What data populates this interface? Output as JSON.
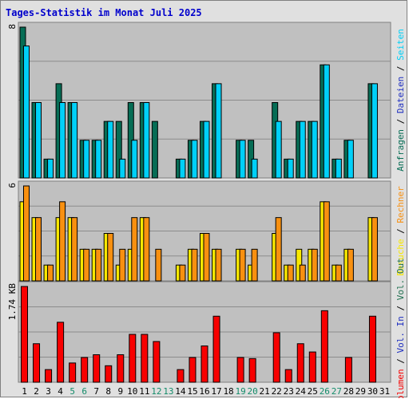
{
  "title": "Tages-Statistik im Monat Juli 2025",
  "colors": {
    "background": "#e0e0e0",
    "plot_bg": "#c0c0c0",
    "anfragen": "#066d55",
    "dateien": "#1e2ec0",
    "seiten": "#00d0f8",
    "besuche": "#f8e800",
    "rechner": "#f89010",
    "vol_out": "#207050",
    "vol_in": "#1e2ec0",
    "volumen": "#f80000",
    "weekend_label": "#138c6a",
    "weekday_label": "#000000"
  },
  "chart_data": [
    {
      "type": "bar",
      "panel": "hits",
      "ymax_label": "8",
      "legend": [
        {
          "text": "Anfragen",
          "color_key": "anfragen"
        },
        {
          "text": " / ",
          "color_key": "weekday_label"
        },
        {
          "text": "Dateien",
          "color_key": "dateien"
        },
        {
          "text": " / ",
          "color_key": "weekday_label"
        },
        {
          "text": "Seiten",
          "color_key": "seiten"
        }
      ],
      "categories": [
        "1",
        "2",
        "3",
        "4",
        "5",
        "6",
        "7",
        "8",
        "9",
        "10",
        "11",
        "12",
        "13",
        "14",
        "15",
        "16",
        "17",
        "18",
        "19",
        "20",
        "21",
        "22",
        "23",
        "24",
        "25",
        "26",
        "27",
        "28",
        "29",
        "30",
        "31"
      ],
      "ylim": [
        0,
        8
      ],
      "series": [
        {
          "name": "Anfragen",
          "color_key": "anfragen",
          "values": [
            8,
            4,
            1,
            5,
            4,
            2,
            2,
            3,
            3,
            4,
            4,
            3,
            0,
            1,
            2,
            3,
            5,
            0,
            2,
            2,
            0,
            4,
            1,
            3,
            3,
            6,
            1,
            2,
            0,
            5,
            0
          ]
        },
        {
          "name": "Seiten",
          "color_key": "seiten",
          "values": [
            7,
            4,
            1,
            4,
            4,
            2,
            2,
            3,
            1,
            2,
            4,
            0,
            0,
            1,
            2,
            3,
            5,
            0,
            2,
            1,
            0,
            3,
            1,
            3,
            3,
            6,
            1,
            2,
            0,
            5,
            0
          ]
        }
      ]
    },
    {
      "type": "bar",
      "panel": "visits",
      "ymax_label": "6",
      "legend": [
        {
          "text": "Besuche",
          "color_key": "besuche"
        },
        {
          "text": " / ",
          "color_key": "weekday_label"
        },
        {
          "text": "Rechner",
          "color_key": "rechner"
        }
      ],
      "categories": [
        "1",
        "2",
        "3",
        "4",
        "5",
        "6",
        "7",
        "8",
        "9",
        "10",
        "11",
        "12",
        "13",
        "14",
        "15",
        "16",
        "17",
        "18",
        "19",
        "20",
        "21",
        "22",
        "23",
        "24",
        "25",
        "26",
        "27",
        "28",
        "29",
        "30",
        "31"
      ],
      "ylim": [
        0,
        6
      ],
      "series": [
        {
          "name": "Besuche",
          "color_key": "besuche",
          "values": [
            5,
            4,
            1,
            4,
            4,
            2,
            2,
            3,
            1,
            2,
            4,
            0,
            0,
            1,
            2,
            3,
            2,
            0,
            2,
            1,
            0,
            3,
            1,
            2,
            2,
            5,
            1,
            2,
            0,
            4,
            0
          ]
        },
        {
          "name": "Rechner",
          "color_key": "rechner",
          "values": [
            6,
            4,
            1,
            5,
            4,
            2,
            2,
            3,
            2,
            4,
            4,
            2,
            0,
            1,
            2,
            3,
            2,
            0,
            2,
            2,
            0,
            4,
            1,
            1,
            2,
            5,
            1,
            2,
            0,
            4,
            0
          ]
        }
      ]
    },
    {
      "type": "bar",
      "panel": "volume",
      "ymax_label": "1.74 KB",
      "legend": [
        {
          "text": "Volumen",
          "color_key": "volumen"
        },
        {
          "text": " / ",
          "color_key": "weekday_label"
        },
        {
          "text": "Vol. In",
          "color_key": "vol_in"
        },
        {
          "text": " / ",
          "color_key": "weekday_label"
        },
        {
          "text": "Vol. Out",
          "color_key": "vol_out"
        }
      ],
      "categories": [
        "1",
        "2",
        "3",
        "4",
        "5",
        "6",
        "7",
        "8",
        "9",
        "10",
        "11",
        "12",
        "13",
        "14",
        "15",
        "16",
        "17",
        "18",
        "19",
        "20",
        "21",
        "22",
        "23",
        "24",
        "25",
        "26",
        "27",
        "28",
        "29",
        "30",
        "31"
      ],
      "ylim": [
        0,
        1.74
      ],
      "series": [
        {
          "name": "Volumen",
          "color_key": "volumen",
          "values": [
            1.74,
            0.7,
            0.23,
            1.09,
            0.35,
            0.45,
            0.5,
            0.3,
            0.5,
            0.87,
            0.87,
            0.74,
            0,
            0.23,
            0.45,
            0.66,
            1.2,
            0,
            0.45,
            0.43,
            0,
            0.9,
            0.23,
            0.7,
            0.55,
            1.3,
            0,
            0.45,
            0,
            1.2,
            0
          ]
        }
      ]
    }
  ],
  "weekend_days": [
    "5",
    "6",
    "12",
    "13",
    "19",
    "20",
    "26",
    "27"
  ],
  "x_labels": [
    "1",
    "2",
    "3",
    "4",
    "5",
    "6",
    "7",
    "8",
    "9",
    "10",
    "11",
    "12",
    "13",
    "14",
    "15",
    "16",
    "17",
    "18",
    "19",
    "20",
    "21",
    "22",
    "23",
    "24",
    "25",
    "26",
    "27",
    "28",
    "29",
    "30",
    "31"
  ]
}
